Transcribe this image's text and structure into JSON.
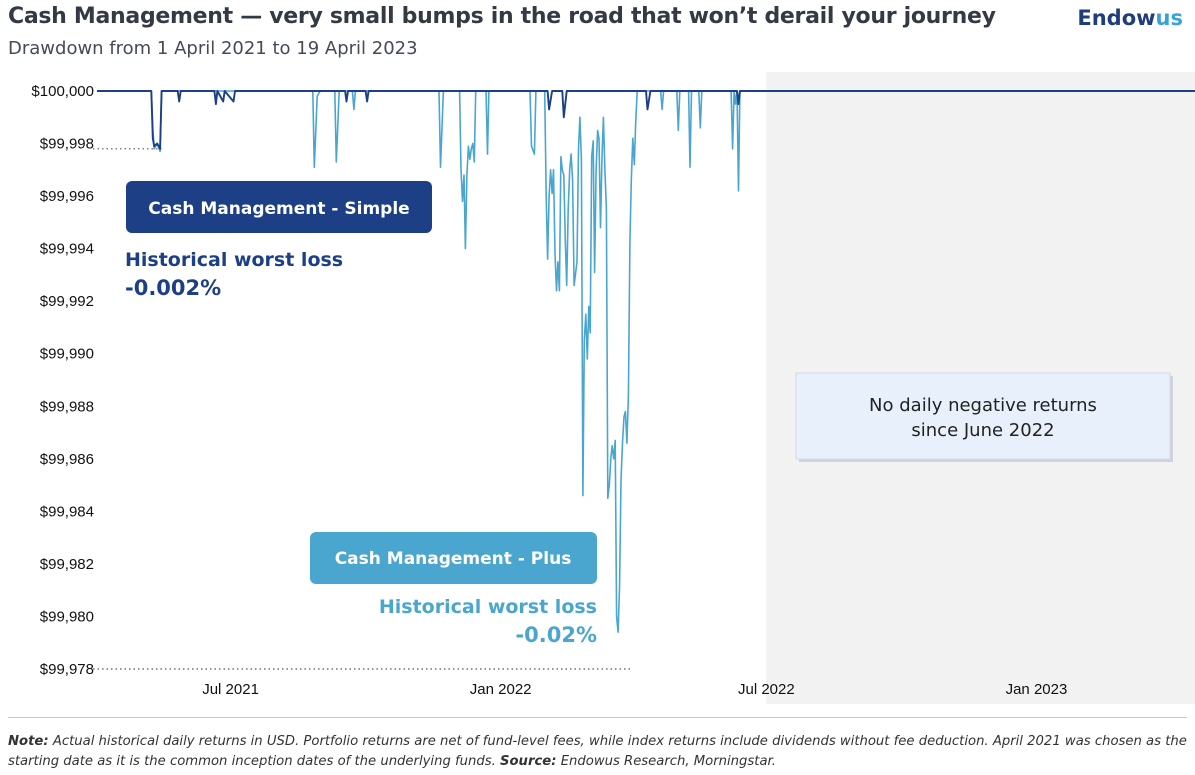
{
  "header": {
    "title": "Cash Management — very small bumps in the road that won’t derail your journey",
    "subtitle": "Drawdown from 1 April 2021 to 19 April 2023",
    "brand_main": "Endow",
    "brand_accent": "us"
  },
  "footnote": {
    "note_label": "Note:",
    "note_text": " Actual historical daily returns in USD. Portfolio returns are net of fund-level fees, while index returns include dividends without fee deduction. April 2021 was chosen as the starting date as it is the common inception dates of the underlying funds. ",
    "source_label": "Source:",
    "source_text": " Endowus Research, Morningstar."
  },
  "colors": {
    "simple": "#1c3f86",
    "plus": "#4aa6cf",
    "shade": "#f2f2f2",
    "axis_text": "#111111"
  },
  "chart_data": {
    "type": "line",
    "x_start": "2021-04-01",
    "x_end": "2023-04-19",
    "ylim": [
      99978,
      100000
    ],
    "yticks": [
      {
        "value": 100000,
        "label": "$100,000"
      },
      {
        "value": 99998,
        "label": "$99,998"
      },
      {
        "value": 99996,
        "label": "$99,996"
      },
      {
        "value": 99994,
        "label": "$99,994"
      },
      {
        "value": 99992,
        "label": "$99,992"
      },
      {
        "value": 99990,
        "label": "$99,990"
      },
      {
        "value": 99988,
        "label": "$99,988"
      },
      {
        "value": 99986,
        "label": "$99,986"
      },
      {
        "value": 99984,
        "label": "$99,984"
      },
      {
        "value": 99982,
        "label": "$99,982"
      },
      {
        "value": 99980,
        "label": "$99,980"
      },
      {
        "value": 99978,
        "label": "$99,978"
      }
    ],
    "xticks": [
      {
        "date": "2021-07-01",
        "label": "Jul 2021"
      },
      {
        "date": "2022-01-01",
        "label": "Jan 2022"
      },
      {
        "date": "2022-07-01",
        "label": "Jul 2022"
      },
      {
        "date": "2023-01-01",
        "label": "Jan 2023"
      }
    ],
    "shaded_from": "2022-07-01",
    "reference_lines": [
      {
        "value": 99997.8,
        "from": "2021-04-01",
        "to": "2021-05-15",
        "series": "simple"
      },
      {
        "value": 99978,
        "from": "2021-04-01",
        "to": "2022-03-31",
        "series": "plus"
      }
    ],
    "series": [
      {
        "name": "Cash Management - Simple",
        "color_key": "simple",
        "points": [
          [
            "2021-04-01",
            100000
          ],
          [
            "2021-05-08",
            100000
          ],
          [
            "2021-05-09",
            99998.2
          ],
          [
            "2021-05-10",
            99997.9
          ],
          [
            "2021-05-12",
            99998.0
          ],
          [
            "2021-05-14",
            99997.8
          ],
          [
            "2021-05-15",
            100000
          ],
          [
            "2021-05-26",
            100000
          ],
          [
            "2021-05-27",
            99999.6
          ],
          [
            "2021-05-28",
            100000
          ],
          [
            "2021-06-20",
            100000
          ],
          [
            "2021-06-21",
            99999.5
          ],
          [
            "2021-06-22",
            100000
          ],
          [
            "2021-06-26",
            99999.6
          ],
          [
            "2021-06-27",
            100000
          ],
          [
            "2021-07-03",
            99999.6
          ],
          [
            "2021-07-04",
            100000
          ],
          [
            "2021-09-17",
            100000
          ],
          [
            "2021-09-18",
            99999.6
          ],
          [
            "2021-09-19",
            100000
          ],
          [
            "2021-10-01",
            100000
          ],
          [
            "2021-10-02",
            99999.6
          ],
          [
            "2021-10-03",
            100000
          ],
          [
            "2022-02-02",
            100000
          ],
          [
            "2022-02-03",
            99999.3
          ],
          [
            "2022-02-05",
            100000
          ],
          [
            "2022-02-12",
            100000
          ],
          [
            "2022-02-13",
            99999.0
          ],
          [
            "2022-02-15",
            100000
          ],
          [
            "2022-04-10",
            100000
          ],
          [
            "2022-04-11",
            99999.3
          ],
          [
            "2022-04-13",
            100000
          ],
          [
            "2022-06-11",
            100000
          ],
          [
            "2022-06-12",
            99999.5
          ],
          [
            "2022-06-13",
            100000
          ],
          [
            "2023-04-19",
            100000
          ]
        ]
      },
      {
        "name": "Cash Management - Plus",
        "color_key": "plus",
        "points": [
          [
            "2021-04-01",
            100000
          ],
          [
            "2021-05-08",
            100000
          ],
          [
            "2021-05-09",
            99998.6
          ],
          [
            "2021-05-10",
            99997.8
          ],
          [
            "2021-05-12",
            99998.0
          ],
          [
            "2021-05-14",
            99997.7
          ],
          [
            "2021-05-15",
            100000
          ],
          [
            "2021-08-26",
            100000
          ],
          [
            "2021-08-27",
            99997.1
          ],
          [
            "2021-08-29",
            99999.8
          ],
          [
            "2021-08-31",
            100000
          ],
          [
            "2021-09-10",
            100000
          ],
          [
            "2021-09-11",
            99997.3
          ],
          [
            "2021-09-13",
            100000
          ],
          [
            "2021-09-22",
            100000
          ],
          [
            "2021-09-23",
            99999.3
          ],
          [
            "2021-09-24",
            100000
          ],
          [
            "2021-11-20",
            100000
          ],
          [
            "2021-11-21",
            99997.1
          ],
          [
            "2021-11-23",
            100000
          ],
          [
            "2021-12-04",
            100000
          ],
          [
            "2021-12-05",
            99997.0
          ],
          [
            "2021-12-06",
            99995.8
          ],
          [
            "2021-12-07",
            99996.8
          ],
          [
            "2021-12-08",
            99994.0
          ],
          [
            "2021-12-09",
            99996.8
          ],
          [
            "2021-12-10",
            99997.9
          ],
          [
            "2021-12-11",
            99997.4
          ],
          [
            "2021-12-12",
            99997.8
          ],
          [
            "2021-12-13",
            99998.0
          ],
          [
            "2021-12-14",
            99997.3
          ],
          [
            "2021-12-15",
            100000
          ],
          [
            "2021-12-22",
            100000
          ],
          [
            "2021-12-23",
            99997.6
          ],
          [
            "2021-12-24",
            100000
          ],
          [
            "2022-01-21",
            100000
          ],
          [
            "2022-01-22",
            99997.9
          ],
          [
            "2022-01-24",
            99997.6
          ],
          [
            "2022-01-25",
            100000
          ],
          [
            "2022-01-31",
            100000
          ],
          [
            "2022-02-01",
            99996.0
          ],
          [
            "2022-02-02",
            99993.6
          ],
          [
            "2022-02-03",
            99996.0
          ],
          [
            "2022-02-04",
            99997.0
          ],
          [
            "2022-02-05",
            99996.1
          ],
          [
            "2022-02-06",
            99997.0
          ],
          [
            "2022-02-07",
            99993.8
          ],
          [
            "2022-02-08",
            99992.4
          ],
          [
            "2022-02-09",
            99993.5
          ],
          [
            "2022-02-10",
            99992.4
          ],
          [
            "2022-02-11",
            99997.5
          ],
          [
            "2022-02-12",
            99997.0
          ],
          [
            "2022-02-13",
            99996.8
          ],
          [
            "2022-02-14",
            99994.3
          ],
          [
            "2022-02-15",
            99992.6
          ],
          [
            "2022-02-16",
            99995.5
          ],
          [
            "2022-02-17",
            99997.0
          ],
          [
            "2022-02-18",
            99997.6
          ],
          [
            "2022-02-19",
            99996.6
          ],
          [
            "2022-02-20",
            99992.6
          ],
          [
            "2022-02-22",
            99993.5
          ],
          [
            "2022-02-23",
            99997.8
          ],
          [
            "2022-02-24",
            99999.0
          ],
          [
            "2022-02-25",
            99997.4
          ],
          [
            "2022-02-26",
            99984.6
          ],
          [
            "2022-02-27",
            99990.5
          ],
          [
            "2022-02-28",
            99991.5
          ],
          [
            "2022-03-01",
            99989.8
          ],
          [
            "2022-03-02",
            99991.8
          ],
          [
            "2022-03-03",
            99990.8
          ],
          [
            "2022-03-04",
            99997.5
          ],
          [
            "2022-03-05",
            99998.1
          ],
          [
            "2022-03-06",
            99993.1
          ],
          [
            "2022-03-07",
            99997.0
          ],
          [
            "2022-03-08",
            99998.5
          ],
          [
            "2022-03-09",
            99998.2
          ],
          [
            "2022-03-10",
            99994.8
          ],
          [
            "2022-03-11",
            99997.5
          ],
          [
            "2022-03-12",
            99999.0
          ],
          [
            "2022-03-13",
            99997.0
          ],
          [
            "2022-03-14",
            99995.5
          ],
          [
            "2022-03-15",
            99984.5
          ],
          [
            "2022-03-16",
            99985.0
          ],
          [
            "2022-03-17",
            99986.0
          ],
          [
            "2022-03-18",
            99986.5
          ],
          [
            "2022-03-19",
            99986.0
          ],
          [
            "2022-03-20",
            99986.7
          ],
          [
            "2022-03-21",
            99980.0
          ],
          [
            "2022-03-22",
            99979.4
          ],
          [
            "2022-03-23",
            99981.2
          ],
          [
            "2022-03-24",
            99985.2
          ],
          [
            "2022-03-25",
            99986.6
          ],
          [
            "2022-03-26",
            99987.6
          ],
          [
            "2022-03-27",
            99987.8
          ],
          [
            "2022-03-28",
            99986.6
          ],
          [
            "2022-03-29",
            99988.4
          ],
          [
            "2022-03-30",
            99994.2
          ],
          [
            "2022-03-31",
            99996.6
          ],
          [
            "2022-04-01",
            99998.2
          ],
          [
            "2022-04-02",
            99997.2
          ],
          [
            "2022-04-03",
            99998.8
          ],
          [
            "2022-04-04",
            100000
          ],
          [
            "2022-04-20",
            100000
          ],
          [
            "2022-04-21",
            99999.3
          ],
          [
            "2022-04-22",
            100000
          ],
          [
            "2022-05-01",
            100000
          ],
          [
            "2022-05-02",
            99998.5
          ],
          [
            "2022-05-03",
            100000
          ],
          [
            "2022-05-09",
            100000
          ],
          [
            "2022-05-10",
            99997.1
          ],
          [
            "2022-05-11",
            100000
          ],
          [
            "2022-05-16",
            100000
          ],
          [
            "2022-05-17",
            99998.6
          ],
          [
            "2022-05-18",
            100000
          ],
          [
            "2022-06-07",
            100000
          ],
          [
            "2022-06-08",
            99997.8
          ],
          [
            "2022-06-09",
            100000
          ],
          [
            "2022-06-10",
            99999.5
          ],
          [
            "2022-06-11",
            100000
          ],
          [
            "2022-06-12",
            99996.2
          ],
          [
            "2022-06-13",
            100000
          ],
          [
            "2023-04-19",
            100000
          ]
        ]
      }
    ],
    "annotations": {
      "simple": {
        "badge": "Cash Management - Simple",
        "label": "Historical worst loss",
        "value": "-0.002%"
      },
      "plus": {
        "badge": "Cash Management - Plus",
        "label": "Historical worst loss",
        "value": "-0.02%"
      },
      "shade_note_line1": "No daily negative returns",
      "shade_note_line2": "since June 2022"
    }
  }
}
